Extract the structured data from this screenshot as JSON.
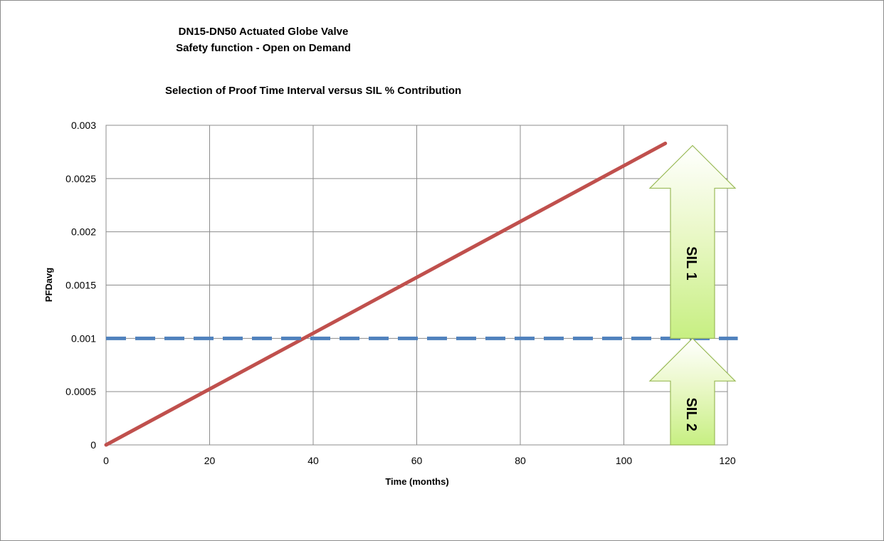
{
  "chart_data": {
    "type": "line",
    "title": "DN15-DN50 Actuated Globe Valve",
    "title_line2": "Safety function  - Open on Demand",
    "subtitle": "Selection of Proof Time Interval versus SIL % Contribution",
    "xlabel": "Time (months)",
    "ylabel": "PFDavg",
    "xlim": [
      0,
      120
    ],
    "ylim": [
      0,
      0.003
    ],
    "x_ticks": [
      "0",
      "20",
      "40",
      "60",
      "80",
      "100",
      "120"
    ],
    "y_ticks": [
      "0",
      "0.0005",
      "0.001",
      "0.0015",
      "0.002",
      "0.0025",
      "0.003"
    ],
    "grid": true,
    "series": [
      {
        "x": [
          0,
          108
        ],
        "values": [
          0.0,
          0.00283
        ],
        "color": "#c0504d",
        "style": "solid"
      },
      {
        "x": [
          0,
          122
        ],
        "values": [
          0.001,
          0.001
        ],
        "color": "#4f81bd",
        "style": "dashed"
      }
    ],
    "annotations": [
      {
        "label": "SIL 1",
        "type": "arrow-up",
        "y_from": 0.001,
        "y_to": 0.00281
      },
      {
        "label": "SIL 2",
        "type": "arrow-up",
        "y_from": 0.0,
        "y_to": 0.001
      }
    ]
  }
}
